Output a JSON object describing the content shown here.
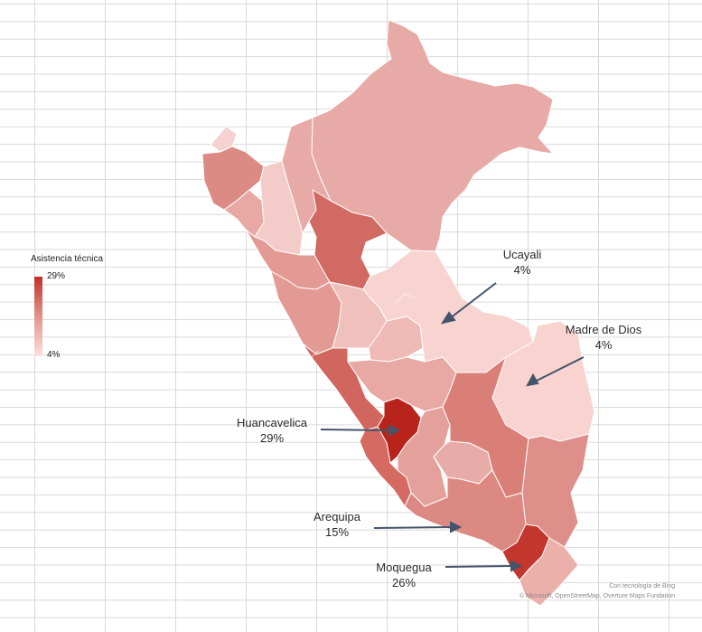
{
  "legend": {
    "title": "Asistencia técnica",
    "max_label": "29%",
    "min_label": "4%",
    "min_value": 4,
    "max_value": 29,
    "color_high": "#c0302a",
    "color_low": "#fbe1de"
  },
  "callouts": [
    {
      "region": "Ucayali",
      "value": "4%"
    },
    {
      "region": "Madre de Dios",
      "value": "4%"
    },
    {
      "region": "Huancavelica",
      "value": "29%"
    },
    {
      "region": "Arequipa",
      "value": "15%"
    },
    {
      "region": "Moquegua",
      "value": "26%"
    }
  ],
  "attribution": {
    "line1": "Con tecnología de Bing",
    "line2": "© Microsoft, OpenStreetMap, Overture Maps Fundation"
  },
  "colors": {
    "arrow": "#44546a",
    "region_border": "#ffffff"
  }
}
